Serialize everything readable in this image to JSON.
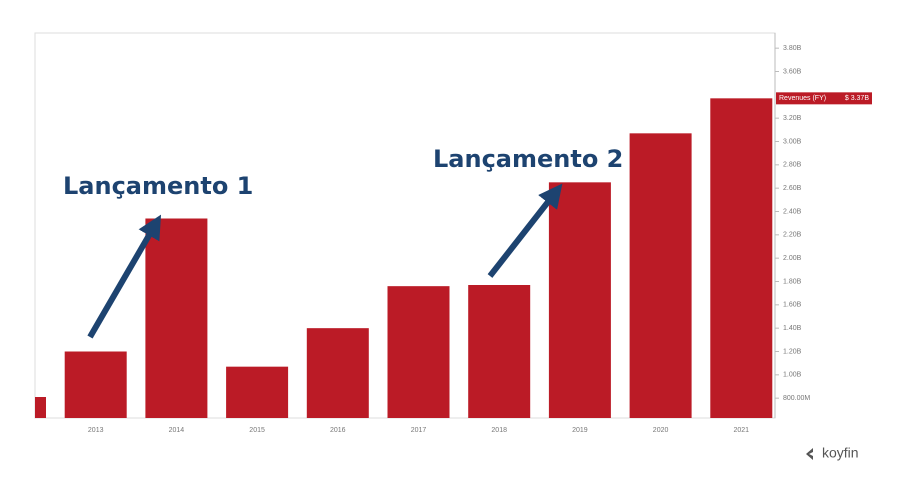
{
  "chart_data": {
    "type": "bar",
    "categories": [
      null,
      "2013",
      "2014",
      "2015",
      "2016",
      "2017",
      "2018",
      "2019",
      "2020",
      "2021"
    ],
    "values": [
      0.81,
      1.2,
      2.34,
      1.07,
      1.4,
      1.76,
      1.77,
      2.65,
      3.07,
      3.37
    ],
    "value_labels": [
      null,
      null,
      null,
      null,
      null,
      null,
      null,
      null,
      null,
      "$ 3.37B"
    ],
    "color": "#bb1b26",
    "ylim": [
      0.63,
      3.93
    ],
    "yticks": [
      {
        "value": 0.8,
        "label": "800.00M"
      },
      {
        "value": 1.0,
        "label": "1.00B"
      },
      {
        "value": 1.2,
        "label": "1.20B"
      },
      {
        "value": 1.4,
        "label": "1.40B"
      },
      {
        "value": 1.6,
        "label": "1.60B"
      },
      {
        "value": 1.8,
        "label": "1.80B"
      },
      {
        "value": 2.0,
        "label": "2.00B"
      },
      {
        "value": 2.2,
        "label": "2.20B"
      },
      {
        "value": 2.4,
        "label": "2.40B"
      },
      {
        "value": 2.6,
        "label": "2.60B"
      },
      {
        "value": 2.8,
        "label": "2.80B"
      },
      {
        "value": 3.0,
        "label": "3.00B"
      },
      {
        "value": 3.2,
        "label": "3.20B"
      },
      {
        "value": 3.6,
        "label": "3.60B"
      },
      {
        "value": 3.8,
        "label": "3.80B"
      }
    ],
    "series_label": "Revenues (FY)",
    "annotations": [
      "Lançamento 1",
      "Lançamento 2"
    ],
    "brand": "koyfin"
  }
}
